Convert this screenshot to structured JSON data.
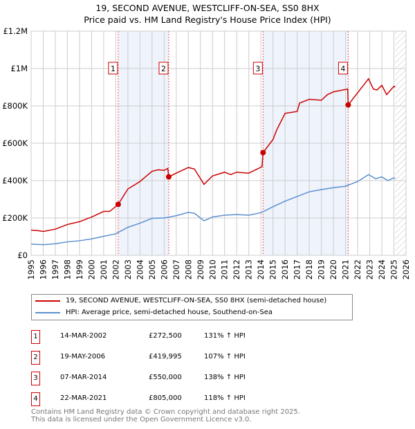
{
  "title": "19, SECOND AVENUE, WESTCLIFF-ON-SEA, SS0 8HX",
  "subtitle": "Price paid vs. HM Land Registry's House Price Index (HPI)",
  "chart_data": {
    "type": "line",
    "title": "19, SECOND AVENUE, WESTCLIFF-ON-SEA, SS0 8HX",
    "subtitle": "Price paid vs. HM Land Registry's House Price Index (HPI)",
    "xlim": [
      1995,
      2026
    ],
    "ylim": [
      0,
      1200000
    ],
    "yticks": [
      {
        "v": 0,
        "label": "£0"
      },
      {
        "v": 200000,
        "label": "£200K"
      },
      {
        "v": 400000,
        "label": "£400K"
      },
      {
        "v": 600000,
        "label": "£600K"
      },
      {
        "v": 800000,
        "label": "£800K"
      },
      {
        "v": 1000000,
        "label": "£1M"
      },
      {
        "v": 1200000,
        "label": "£1.2M"
      }
    ],
    "xticks": [
      "1995",
      "1996",
      "1997",
      "1998",
      "1999",
      "2000",
      "2001",
      "2002",
      "2003",
      "2004",
      "2005",
      "2006",
      "2007",
      "2008",
      "2009",
      "2010",
      "2011",
      "2012",
      "2013",
      "2014",
      "2015",
      "2016",
      "2017",
      "2018",
      "2019",
      "2020",
      "2021",
      "2022",
      "2023",
      "2024",
      "2025",
      "2026"
    ],
    "grid": true,
    "forecast_hatch_from": 2025.1,
    "series": [
      {
        "name": "19, SECOND AVENUE, WESTCLIFF-ON-SEA, SS0 8HX (semi-detached house)",
        "color": "#cc0000",
        "x": [
          1995,
          1995.6,
          1996,
          1997,
          1998,
          1999,
          2000,
          2001,
          2001.5,
          2002.2,
          2003,
          2004,
          2005,
          2005.5,
          2006,
          2006.3,
          2006.38,
          2007,
          2008,
          2008.5,
          2009.3,
          2010,
          2011,
          2011.5,
          2012,
          2013,
          2014.1,
          2014.18,
          2015,
          2015.3,
          2016,
          2017,
          2017.2,
          2018,
          2019,
          2019.5,
          2020,
          2021.18,
          2021.22,
          2022,
          2022.9,
          2023.3,
          2023.6,
          2024,
          2024.4,
          2025,
          2025.1
        ],
        "y": [
          135000,
          132000,
          128000,
          140000,
          165000,
          180000,
          205000,
          235000,
          235000,
          272500,
          355000,
          395000,
          450000,
          458000,
          455000,
          465000,
          420000,
          440000,
          470000,
          462000,
          380000,
          425000,
          445000,
          432000,
          445000,
          440000,
          475000,
          550000,
          620000,
          670000,
          760000,
          770000,
          815000,
          835000,
          830000,
          860000,
          875000,
          890000,
          805000,
          870000,
          945000,
          890000,
          885000,
          910000,
          860000,
          905000,
          900000
        ]
      },
      {
        "name": "HPI: Average price, semi-detached house, Southend-on-Sea",
        "color": "#5b8fd0",
        "x": [
          1995,
          1996,
          1997,
          1998,
          1999,
          2000,
          2001,
          2002,
          2003,
          2004,
          2005,
          2006,
          2007,
          2008,
          2008.5,
          2009.3,
          2010,
          2011,
          2012,
          2013,
          2014,
          2015,
          2016,
          2017,
          2018,
          2019,
          2020,
          2021,
          2022,
          2022.9,
          2023.5,
          2024,
          2024.5,
          2025,
          2025.1
        ],
        "y": [
          60000,
          57000,
          62000,
          72000,
          78000,
          88000,
          102000,
          115000,
          150000,
          172000,
          198000,
          200000,
          212000,
          230000,
          225000,
          185000,
          205000,
          215000,
          218000,
          215000,
          228000,
          260000,
          290000,
          315000,
          340000,
          352000,
          362000,
          370000,
          395000,
          432000,
          410000,
          420000,
          400000,
          415000,
          412000
        ]
      }
    ],
    "transactions": [
      {
        "n": "1",
        "x": 2002.2,
        "date": "14-MAR-2002",
        "price": 272500,
        "price_label": "£272,500",
        "hpi": "131% ↑ HPI"
      },
      {
        "n": "2",
        "x": 2006.38,
        "date": "19-MAY-2006",
        "price": 419995,
        "price_label": "£419,995",
        "hpi": "107% ↑ HPI"
      },
      {
        "n": "3",
        "x": 2014.18,
        "date": "07-MAR-2014",
        "price": 550000,
        "price_label": "£550,000",
        "hpi": "138% ↑ HPI"
      },
      {
        "n": "4",
        "x": 2021.22,
        "date": "22-MAR-2021",
        "price": 805000,
        "price_label": "£805,000",
        "hpi": "118% ↑ HPI"
      }
    ],
    "shaded_ranges": [
      [
        2002.2,
        2006.38
      ],
      [
        2014.18,
        2021.22
      ]
    ]
  },
  "legend": {
    "red": "19, SECOND AVENUE, WESTCLIFF-ON-SEA, SS0 8HX (semi-detached house)",
    "blue": "HPI: Average price, semi-detached house, Southend-on-Sea"
  },
  "footer": {
    "line1": "Contains HM Land Registry data © Crown copyright and database right 2025.",
    "line2": "This data is licensed under the Open Government Licence v3.0."
  }
}
